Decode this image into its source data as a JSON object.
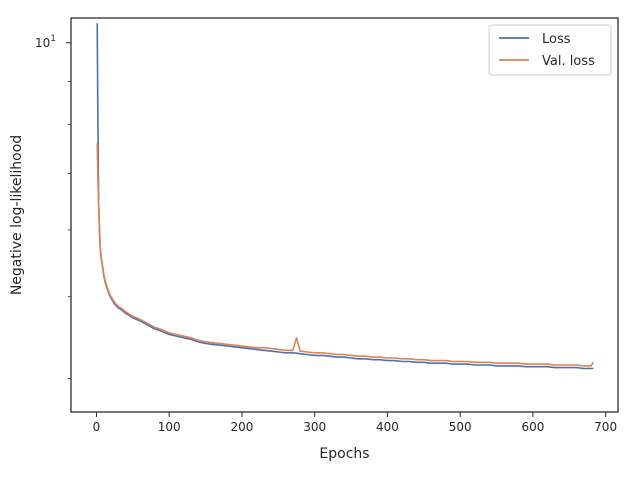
{
  "chart_data": {
    "type": "line",
    "title": "",
    "xlabel": "Epochs",
    "ylabel": "Negative log-likelihood",
    "xlim": [
      -35,
      717
    ],
    "ylim": [
      3.65,
      10.7
    ],
    "yscale": "log",
    "xticks": [
      0,
      100,
      200,
      300,
      400,
      500,
      600,
      700
    ],
    "xtick_labels": [
      "0",
      "100",
      "200",
      "300",
      "400",
      "500",
      "600",
      "700"
    ],
    "yticks": [
      10
    ],
    "ytick_labels": [
      "10"
    ],
    "ytick_superscripts": [
      "1"
    ],
    "grid": false,
    "legend_position": "top-right",
    "series": [
      {
        "name": "Loss",
        "color": "#4c72b0",
        "x": [
          1,
          2,
          3,
          4,
          5,
          6,
          8,
          10,
          12,
          15,
          18,
          20,
          25,
          30,
          35,
          40,
          45,
          50,
          55,
          60,
          70,
          80,
          90,
          100,
          110,
          120,
          130,
          140,
          150,
          160,
          170,
          180,
          190,
          200,
          210,
          220,
          230,
          240,
          250,
          260,
          270,
          280,
          290,
          300,
          310,
          320,
          330,
          340,
          350,
          360,
          370,
          380,
          390,
          400,
          410,
          420,
          430,
          440,
          450,
          460,
          470,
          480,
          490,
          500,
          510,
          520,
          530,
          540,
          550,
          560,
          570,
          580,
          590,
          600,
          610,
          620,
          630,
          640,
          650,
          660,
          670,
          680,
          683
        ],
        "y": [
          10.55,
          8.1,
          6.5,
          6.0,
          5.75,
          5.6,
          5.45,
          5.3,
          5.2,
          5.1,
          5.02,
          4.98,
          4.9,
          4.85,
          4.82,
          4.78,
          4.75,
          4.72,
          4.7,
          4.68,
          4.63,
          4.58,
          4.55,
          4.51,
          4.49,
          4.47,
          4.45,
          4.42,
          4.4,
          4.39,
          4.38,
          4.37,
          4.36,
          4.35,
          4.34,
          4.33,
          4.32,
          4.31,
          4.3,
          4.29,
          4.29,
          4.28,
          4.27,
          4.26,
          4.26,
          4.25,
          4.24,
          4.24,
          4.23,
          4.22,
          4.22,
          4.21,
          4.21,
          4.2,
          4.2,
          4.19,
          4.19,
          4.18,
          4.18,
          4.17,
          4.17,
          4.17,
          4.16,
          4.16,
          4.16,
          4.15,
          4.15,
          4.15,
          4.14,
          4.14,
          4.14,
          4.14,
          4.13,
          4.13,
          4.13,
          4.13,
          4.12,
          4.12,
          4.12,
          4.12,
          4.11,
          4.11,
          4.11
        ]
      },
      {
        "name": "Val. loss",
        "color": "#dd8452",
        "x": [
          1,
          2,
          3,
          4,
          5,
          6,
          8,
          10,
          12,
          15,
          18,
          20,
          25,
          30,
          35,
          40,
          45,
          50,
          55,
          60,
          70,
          80,
          90,
          100,
          110,
          120,
          130,
          140,
          150,
          160,
          170,
          180,
          190,
          200,
          210,
          220,
          230,
          240,
          250,
          260,
          270,
          275,
          280,
          290,
          300,
          310,
          320,
          330,
          340,
          350,
          360,
          370,
          380,
          390,
          400,
          410,
          420,
          430,
          440,
          450,
          460,
          470,
          480,
          490,
          500,
          510,
          520,
          530,
          540,
          550,
          560,
          570,
          580,
          590,
          600,
          610,
          620,
          630,
          640,
          650,
          660,
          670,
          680,
          683
        ],
        "y": [
          7.6,
          6.9,
          6.5,
          6.05,
          5.78,
          5.62,
          5.47,
          5.32,
          5.22,
          5.12,
          5.04,
          5.0,
          4.92,
          4.87,
          4.84,
          4.8,
          4.77,
          4.74,
          4.72,
          4.7,
          4.65,
          4.6,
          4.57,
          4.53,
          4.51,
          4.49,
          4.47,
          4.44,
          4.42,
          4.41,
          4.4,
          4.39,
          4.38,
          4.37,
          4.36,
          4.35,
          4.35,
          4.34,
          4.33,
          4.32,
          4.32,
          4.47,
          4.31,
          4.3,
          4.29,
          4.29,
          4.28,
          4.27,
          4.27,
          4.26,
          4.25,
          4.25,
          4.24,
          4.24,
          4.23,
          4.23,
          4.22,
          4.22,
          4.21,
          4.21,
          4.2,
          4.2,
          4.2,
          4.19,
          4.19,
          4.19,
          4.18,
          4.18,
          4.18,
          4.17,
          4.17,
          4.17,
          4.17,
          4.16,
          4.16,
          4.16,
          4.16,
          4.15,
          4.15,
          4.15,
          4.15,
          4.14,
          4.14,
          4.18
        ]
      }
    ]
  }
}
